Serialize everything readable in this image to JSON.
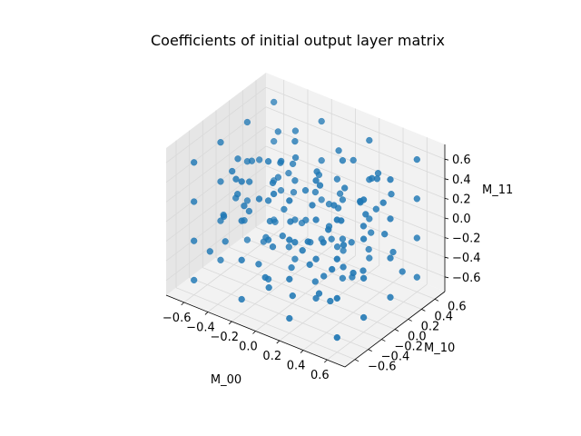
{
  "chart_data": {
    "type": "scatter",
    "title": "Coefficients of initial output layer matrix",
    "xlabel": "M_00",
    "ylabel": "M_10",
    "zlabel": "M_11",
    "xlim": [
      -0.75,
      0.75
    ],
    "ylim": [
      -0.75,
      0.75
    ],
    "zlim": [
      -0.75,
      0.75
    ],
    "x_ticks": [
      "−0.6",
      "−0.4",
      "−0.2",
      "0.0",
      "0.2",
      "0.4",
      "0.6"
    ],
    "y_ticks": [
      "−0.6",
      "−0.4",
      "−0.2",
      "0.0",
      "0.2",
      "0.4",
      "0.6"
    ],
    "z_ticks": [
      "−0.6",
      "−0.4",
      "−0.2",
      "0.0",
      "0.2",
      "0.4",
      "0.6"
    ],
    "grid": true,
    "colors": {
      "points": "#1f77b4",
      "pane_light": "#f2f2f2",
      "pane_dark": "#e6e6e6",
      "grid": "#d9d9d9"
    },
    "series": [
      {
        "points": [
          [
            -0.6,
            -0.6,
            -0.6
          ],
          [
            -0.6,
            -0.6,
            -0.2
          ],
          [
            -0.6,
            -0.6,
            0.2
          ],
          [
            -0.6,
            -0.6,
            0.6
          ],
          [
            -0.6,
            -0.2,
            -0.6
          ],
          [
            -0.6,
            -0.2,
            -0.2
          ],
          [
            -0.6,
            -0.2,
            0.2
          ],
          [
            -0.6,
            -0.2,
            0.6
          ],
          [
            -0.6,
            0.2,
            -0.6
          ],
          [
            -0.6,
            0.2,
            -0.2
          ],
          [
            -0.6,
            0.2,
            0.2
          ],
          [
            -0.6,
            0.2,
            0.6
          ],
          [
            -0.6,
            0.6,
            -0.6
          ],
          [
            -0.6,
            0.6,
            -0.2
          ],
          [
            -0.6,
            0.6,
            0.2
          ],
          [
            -0.6,
            0.6,
            0.6
          ],
          [
            -0.2,
            -0.6,
            -0.6
          ],
          [
            -0.2,
            -0.6,
            -0.2
          ],
          [
            -0.2,
            -0.6,
            0.2
          ],
          [
            -0.2,
            -0.6,
            0.6
          ],
          [
            -0.2,
            -0.2,
            -0.6
          ],
          [
            -0.2,
            -0.2,
            -0.2
          ],
          [
            -0.2,
            -0.2,
            0.2
          ],
          [
            -0.2,
            -0.2,
            0.6
          ],
          [
            -0.2,
            0.2,
            -0.6
          ],
          [
            -0.2,
            0.2,
            -0.2
          ],
          [
            -0.2,
            0.2,
            0.2
          ],
          [
            -0.2,
            0.2,
            0.6
          ],
          [
            -0.2,
            0.6,
            -0.6
          ],
          [
            -0.2,
            0.6,
            -0.2
          ],
          [
            -0.2,
            0.6,
            0.2
          ],
          [
            -0.2,
            0.6,
            0.6
          ],
          [
            0.2,
            -0.6,
            -0.6
          ],
          [
            0.2,
            -0.6,
            -0.2
          ],
          [
            0.2,
            -0.6,
            0.2
          ],
          [
            0.2,
            -0.6,
            0.6
          ],
          [
            0.2,
            -0.2,
            -0.6
          ],
          [
            0.2,
            -0.2,
            -0.2
          ],
          [
            0.2,
            -0.2,
            0.2
          ],
          [
            0.2,
            -0.2,
            0.6
          ],
          [
            0.2,
            0.2,
            -0.6
          ],
          [
            0.2,
            0.2,
            -0.2
          ],
          [
            0.2,
            0.2,
            0.2
          ],
          [
            0.2,
            0.2,
            0.6
          ],
          [
            0.2,
            0.6,
            -0.6
          ],
          [
            0.2,
            0.6,
            -0.2
          ],
          [
            0.2,
            0.6,
            0.2
          ],
          [
            0.2,
            0.6,
            0.6
          ],
          [
            0.6,
            -0.6,
            -0.6
          ],
          [
            0.6,
            -0.6,
            -0.2
          ],
          [
            0.6,
            -0.6,
            0.2
          ],
          [
            0.6,
            -0.6,
            0.6
          ],
          [
            0.6,
            -0.2,
            -0.6
          ],
          [
            0.6,
            -0.2,
            -0.2
          ],
          [
            0.6,
            -0.2,
            0.2
          ],
          [
            0.6,
            -0.2,
            0.6
          ],
          [
            0.6,
            0.2,
            -0.6
          ],
          [
            0.6,
            0.2,
            -0.2
          ],
          [
            0.6,
            0.2,
            0.2
          ],
          [
            0.6,
            0.2,
            0.6
          ],
          [
            0.6,
            0.6,
            -0.6
          ],
          [
            0.6,
            0.6,
            -0.2
          ],
          [
            0.6,
            0.6,
            0.2
          ],
          [
            0.6,
            0.6,
            0.6
          ],
          [
            -0.42,
            -0.35,
            0.47
          ],
          [
            -0.31,
            0.5,
            -0.44
          ],
          [
            -0.5,
            0.09,
            0.31
          ],
          [
            -0.12,
            -0.48,
            0.4
          ],
          [
            0.05,
            0.41,
            0.52
          ],
          [
            0.37,
            -0.29,
            -0.5
          ],
          [
            0.48,
            0.33,
            -0.08
          ],
          [
            -0.05,
            -0.12,
            -0.45
          ],
          [
            0.14,
            -0.41,
            0.05
          ],
          [
            -0.38,
            0.27,
            0.11
          ],
          [
            0.29,
            0.07,
            0.43
          ],
          [
            -0.21,
            0.38,
            -0.3
          ],
          [
            0.44,
            -0.52,
            0.25
          ],
          [
            -0.55,
            -0.45,
            -0.36
          ],
          [
            0.09,
            0.23,
            -0.27
          ],
          [
            0.33,
            0.5,
            0.38
          ],
          [
            -0.27,
            -0.05,
            -0.12
          ],
          [
            0.52,
            -0.11,
            0.5
          ],
          [
            -0.47,
            0.43,
            0.45
          ],
          [
            0.0,
            0.0,
            0.3
          ],
          [
            0.22,
            -0.33,
            -0.18
          ],
          [
            -0.09,
            0.31,
            0.08
          ],
          [
            0.4,
            0.15,
            -0.4
          ],
          [
            -0.35,
            -0.22,
            0.03
          ],
          [
            0.11,
            -0.05,
            -0.55
          ],
          [
            -0.15,
            0.12,
            0.5
          ],
          [
            0.55,
            0.47,
            -0.5
          ],
          [
            -0.52,
            -0.3,
            -0.05
          ],
          [
            0.26,
            0.36,
            0.12
          ],
          [
            -0.03,
            -0.55,
            -0.32
          ],
          [
            0.47,
            0.03,
            0.15
          ],
          [
            -0.44,
            0.16,
            -0.52
          ],
          [
            0.18,
            -0.22,
            0.35
          ],
          [
            -0.28,
            -0.42,
            0.22
          ],
          [
            0.36,
            -0.44,
            -0.35
          ],
          [
            -0.07,
            0.48,
            -0.12
          ],
          [
            0.53,
            0.22,
            0.32
          ],
          [
            -0.49,
            0.51,
            -0.2
          ],
          [
            0.03,
            -0.28,
            0.14
          ],
          [
            -0.19,
            -0.15,
            0.36
          ],
          [
            0.31,
            0.43,
            -0.2
          ],
          [
            -0.36,
            0.05,
            -0.38
          ],
          [
            0.12,
            0.14,
            -0.08
          ],
          [
            -0.56,
            0.31,
            0.18
          ],
          [
            0.42,
            -0.18,
            0.04
          ],
          [
            -0.1,
            -0.37,
            -0.55
          ],
          [
            0.24,
            0.52,
            -0.45
          ],
          [
            -0.24,
            0.24,
            0.33
          ],
          [
            0.5,
            -0.36,
            0.42
          ],
          [
            -0.4,
            -0.51,
            0.1
          ],
          [
            0.07,
            0.35,
            0.27
          ],
          [
            -0.33,
            0.44,
            0.52
          ],
          [
            0.35,
            -0.06,
            -0.28
          ],
          [
            -0.14,
            -0.24,
            -0.22
          ],
          [
            0.45,
            0.27,
            0.5
          ],
          [
            -0.5,
            -0.12,
            0.44
          ],
          [
            0.16,
            -0.48,
            -0.45
          ],
          [
            -0.25,
            0.2,
            -0.5
          ],
          [
            0.28,
            0.2,
            -0.55
          ],
          [
            0.0,
            0.52,
            0.0
          ],
          [
            -0.46,
            -0.38,
            -0.25
          ],
          [
            0.38,
            0.38,
            0.1
          ],
          [
            -0.18,
            0.0,
            0.02
          ],
          [
            0.2,
            -0.14,
            0.52
          ],
          [
            -0.3,
            0.36,
            -0.05
          ],
          [
            0.54,
            -0.25,
            -0.15
          ],
          [
            -0.02,
            -0.44,
            0.48
          ],
          [
            0.1,
            0.3,
            -0.38
          ],
          [
            -0.53,
            0.03,
            -0.28
          ],
          [
            0.46,
            0.08,
            0.24
          ],
          [
            -0.11,
            0.4,
            0.2
          ],
          [
            0.3,
            -0.5,
            0.18
          ],
          [
            -0.37,
            -0.18,
            0.3
          ],
          [
            0.15,
            0.45,
            0.45
          ],
          [
            -0.22,
            -0.31,
            -0.4
          ],
          [
            0.41,
            -0.39,
            0.3
          ],
          [
            0.04,
            0.1,
            0.46
          ],
          [
            -0.45,
            0.35,
            -0.42
          ],
          [
            0.25,
            -0.02,
            0.28
          ],
          [
            -0.06,
            0.18,
            -0.35
          ],
          [
            0.5,
            0.42,
            -0.3
          ],
          [
            -0.32,
            -0.47,
            0.5
          ],
          [
            0.17,
            -0.35,
            -0.05
          ],
          [
            -0.41,
            0.48,
            0.03
          ],
          [
            0.33,
            0.1,
            -0.12
          ],
          [
            -0.16,
            -0.09,
            0.55
          ],
          [
            0.49,
            -0.48,
            -0.02
          ],
          [
            -0.54,
            -0.08,
            0.0
          ],
          [
            0.06,
            0.46,
            -0.52
          ],
          [
            -0.26,
            0.1,
            0.42
          ],
          [
            0.39,
            0.3,
            0.46
          ],
          [
            0.21,
            -0.1,
            -0.42
          ],
          [
            -0.43,
            -0.25,
            0.18
          ],
          [
            0.13,
            0.26,
            0.05
          ],
          [
            -0.08,
            -0.2,
            -0.1
          ],
          [
            0.44,
            0.5,
            0.22
          ]
        ]
      }
    ]
  }
}
